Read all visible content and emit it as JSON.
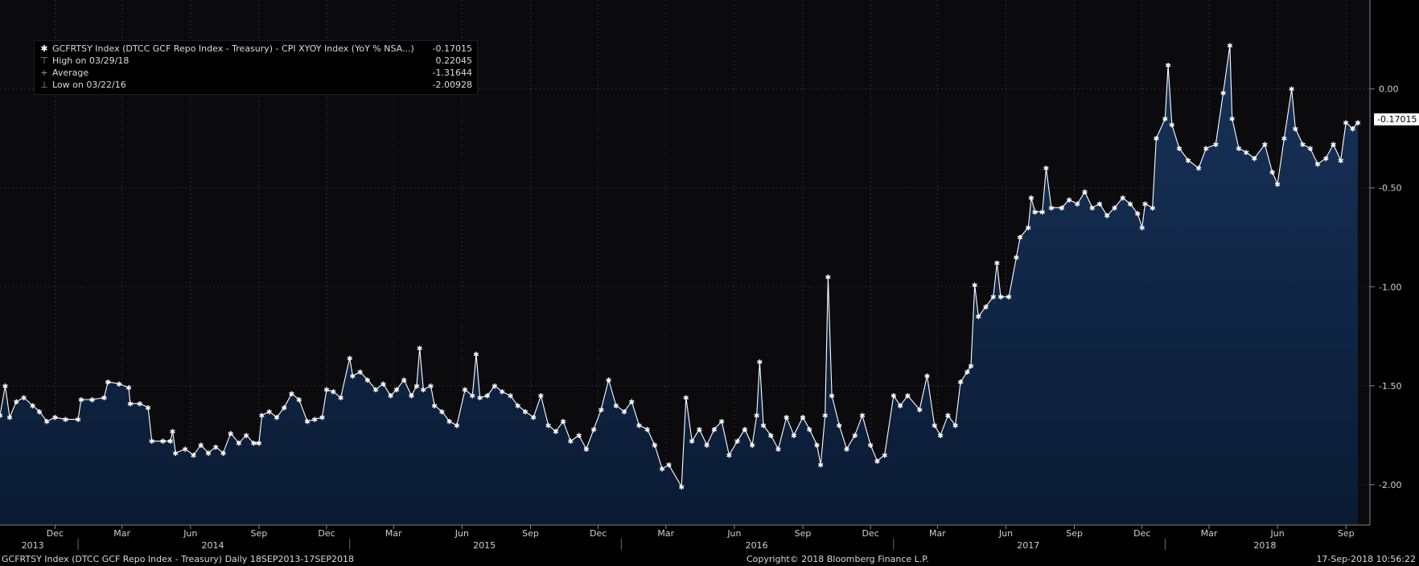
{
  "legend": {
    "series_label": "GCFRTSY Index (DTCC GCF Repo Index - Treasury) - CPI XYOY Index (YoY % NSA...)",
    "series_value": "-0.17015",
    "high_label": "High on 03/29/18",
    "high_value": "0.22045",
    "avg_label": "Average",
    "avg_value": "-1.31644",
    "low_label": "Low on 03/22/16",
    "low_value": "-2.00928",
    "marker_series": "✱",
    "marker_high": "⊤",
    "marker_avg": "+",
    "marker_low": "⊥"
  },
  "last_value_badge": "-0.17015",
  "footer": {
    "left": "GCFRTSY Index (DTCC GCF Repo Index - Treasury)  Daily 18SEP2013-17SEP2018",
    "center": "Copyright© 2018 Bloomberg Finance L.P.",
    "right": "17-Sep-2018 10:56:22"
  },
  "colors": {
    "background": "#000000",
    "plot_background": "#0b0b0e",
    "area_fill_top": "#17335a",
    "area_fill_bottom": "#0a1a33",
    "line": "#ffffff",
    "grid": "#3a3a3a",
    "badge_bg": "#ffffff"
  },
  "chart_data": {
    "type": "area",
    "title": "",
    "xlabel": "",
    "ylabel": "",
    "x_range": [
      "2013-09-18",
      "2018-09-17"
    ],
    "ylim": [
      -2.2,
      0.45
    ],
    "yticks": [
      0.0,
      -0.5,
      -1.0,
      -1.5,
      -2.0
    ],
    "ytick_labels": [
      "0.00",
      "-0.50",
      "-1.00",
      "-1.50",
      "-2.00"
    ],
    "y_axis_side": "right",
    "grid": true,
    "month_ticks": [
      {
        "date": "2013-12-01",
        "label": "Dec"
      },
      {
        "date": "2014-03-01",
        "label": "Mar"
      },
      {
        "date": "2014-06-01",
        "label": "Jun"
      },
      {
        "date": "2014-09-01",
        "label": "Sep"
      },
      {
        "date": "2014-12-01",
        "label": "Dec"
      },
      {
        "date": "2015-03-01",
        "label": "Mar"
      },
      {
        "date": "2015-06-01",
        "label": "Jun"
      },
      {
        "date": "2015-09-01",
        "label": "Sep"
      },
      {
        "date": "2015-12-01",
        "label": "Dec"
      },
      {
        "date": "2016-03-01",
        "label": "Mar"
      },
      {
        "date": "2016-06-01",
        "label": "Jun"
      },
      {
        "date": "2016-09-01",
        "label": "Sep"
      },
      {
        "date": "2016-12-01",
        "label": "Dec"
      },
      {
        "date": "2017-03-01",
        "label": "Mar"
      },
      {
        "date": "2017-06-01",
        "label": "Jun"
      },
      {
        "date": "2017-09-01",
        "label": "Sep"
      },
      {
        "date": "2017-12-01",
        "label": "Dec"
      },
      {
        "date": "2018-03-01",
        "label": "Mar"
      },
      {
        "date": "2018-06-01",
        "label": "Jun"
      },
      {
        "date": "2018-09-01",
        "label": "Sep"
      }
    ],
    "year_ticks": [
      {
        "date": "2013-11-01",
        "label": "2013"
      },
      {
        "date": "2014-07-01",
        "label": "2014"
      },
      {
        "date": "2015-07-01",
        "label": "2015"
      },
      {
        "date": "2016-07-01",
        "label": "2016"
      },
      {
        "date": "2017-07-01",
        "label": "2017"
      },
      {
        "date": "2018-05-15",
        "label": "2018"
      }
    ],
    "year_separators": [
      "2014-01-01",
      "2015-01-01",
      "2016-01-01",
      "2017-01-01",
      "2018-01-01"
    ],
    "series": [
      {
        "name": "GCFRTSY Index (DTCC GCF Repo Index - Treasury) - CPI XYOY Index (YoY % NSA...)",
        "points": [
          [
            "2013-09-18",
            -1.65
          ],
          [
            "2013-09-25",
            -1.5
          ],
          [
            "2013-10-01",
            -1.66
          ],
          [
            "2013-10-10",
            -1.58
          ],
          [
            "2013-10-20",
            -1.56
          ],
          [
            "2013-11-01",
            -1.6
          ],
          [
            "2013-11-10",
            -1.63
          ],
          [
            "2013-11-20",
            -1.68
          ],
          [
            "2013-12-01",
            -1.66
          ],
          [
            "2013-12-15",
            -1.67
          ],
          [
            "2014-01-01",
            -1.67
          ],
          [
            "2014-01-05",
            -1.57
          ],
          [
            "2014-01-20",
            -1.57
          ],
          [
            "2014-02-05",
            -1.56
          ],
          [
            "2014-02-10",
            -1.48
          ],
          [
            "2014-02-25",
            -1.49
          ],
          [
            "2014-03-10",
            -1.51
          ],
          [
            "2014-03-12",
            -1.59
          ],
          [
            "2014-03-25",
            -1.59
          ],
          [
            "2014-04-05",
            -1.61
          ],
          [
            "2014-04-10",
            -1.78
          ],
          [
            "2014-04-25",
            -1.78
          ],
          [
            "2014-05-05",
            -1.78
          ],
          [
            "2014-05-08",
            -1.73
          ],
          [
            "2014-05-12",
            -1.84
          ],
          [
            "2014-05-25",
            -1.82
          ],
          [
            "2014-06-05",
            -1.85
          ],
          [
            "2014-06-15",
            -1.8
          ],
          [
            "2014-06-25",
            -1.84
          ],
          [
            "2014-07-05",
            -1.81
          ],
          [
            "2014-07-15",
            -1.84
          ],
          [
            "2014-07-25",
            -1.74
          ],
          [
            "2014-08-05",
            -1.79
          ],
          [
            "2014-08-15",
            -1.75
          ],
          [
            "2014-08-25",
            -1.79
          ],
          [
            "2014-09-01",
            -1.79
          ],
          [
            "2014-09-05",
            -1.65
          ],
          [
            "2014-09-15",
            -1.63
          ],
          [
            "2014-09-25",
            -1.66
          ],
          [
            "2014-10-05",
            -1.61
          ],
          [
            "2014-10-15",
            -1.54
          ],
          [
            "2014-10-25",
            -1.57
          ],
          [
            "2014-11-05",
            -1.68
          ],
          [
            "2014-11-15",
            -1.67
          ],
          [
            "2014-11-25",
            -1.66
          ],
          [
            "2014-12-01",
            -1.52
          ],
          [
            "2014-12-10",
            -1.53
          ],
          [
            "2014-12-20",
            -1.56
          ],
          [
            "2015-01-01",
            -1.36
          ],
          [
            "2015-01-05",
            -1.45
          ],
          [
            "2015-01-15",
            -1.43
          ],
          [
            "2015-01-25",
            -1.47
          ],
          [
            "2015-02-05",
            -1.52
          ],
          [
            "2015-02-15",
            -1.49
          ],
          [
            "2015-02-25",
            -1.55
          ],
          [
            "2015-03-05",
            -1.52
          ],
          [
            "2015-03-15",
            -1.47
          ],
          [
            "2015-03-25",
            -1.55
          ],
          [
            "2015-04-01",
            -1.5
          ],
          [
            "2015-04-05",
            -1.31
          ],
          [
            "2015-04-10",
            -1.52
          ],
          [
            "2015-04-20",
            -1.5
          ],
          [
            "2015-04-25",
            -1.6
          ],
          [
            "2015-05-05",
            -1.63
          ],
          [
            "2015-05-15",
            -1.68
          ],
          [
            "2015-05-25",
            -1.7
          ],
          [
            "2015-06-05",
            -1.52
          ],
          [
            "2015-06-15",
            -1.55
          ],
          [
            "2015-06-20",
            -1.34
          ],
          [
            "2015-06-25",
            -1.56
          ],
          [
            "2015-07-05",
            -1.55
          ],
          [
            "2015-07-15",
            -1.5
          ],
          [
            "2015-07-25",
            -1.53
          ],
          [
            "2015-08-05",
            -1.55
          ],
          [
            "2015-08-15",
            -1.6
          ],
          [
            "2015-08-25",
            -1.63
          ],
          [
            "2015-09-05",
            -1.66
          ],
          [
            "2015-09-15",
            -1.55
          ],
          [
            "2015-09-25",
            -1.7
          ],
          [
            "2015-10-05",
            -1.73
          ],
          [
            "2015-10-15",
            -1.68
          ],
          [
            "2015-10-25",
            -1.78
          ],
          [
            "2015-11-05",
            -1.75
          ],
          [
            "2015-11-15",
            -1.82
          ],
          [
            "2015-11-25",
            -1.72
          ],
          [
            "2015-12-05",
            -1.62
          ],
          [
            "2015-12-15",
            -1.47
          ],
          [
            "2015-12-25",
            -1.6
          ],
          [
            "2016-01-05",
            -1.63
          ],
          [
            "2016-01-15",
            -1.58
          ],
          [
            "2016-01-25",
            -1.7
          ],
          [
            "2016-02-05",
            -1.72
          ],
          [
            "2016-02-15",
            -1.8
          ],
          [
            "2016-02-25",
            -1.92
          ],
          [
            "2016-03-05",
            -1.9
          ],
          [
            "2016-03-22",
            -2.01
          ],
          [
            "2016-03-28",
            -1.56
          ],
          [
            "2016-04-05",
            -1.78
          ],
          [
            "2016-04-15",
            -1.72
          ],
          [
            "2016-04-25",
            -1.8
          ],
          [
            "2016-05-05",
            -1.72
          ],
          [
            "2016-05-15",
            -1.68
          ],
          [
            "2016-05-25",
            -1.85
          ],
          [
            "2016-06-05",
            -1.78
          ],
          [
            "2016-06-15",
            -1.72
          ],
          [
            "2016-06-25",
            -1.8
          ],
          [
            "2016-07-01",
            -1.65
          ],
          [
            "2016-07-05",
            -1.38
          ],
          [
            "2016-07-10",
            -1.7
          ],
          [
            "2016-07-20",
            -1.75
          ],
          [
            "2016-07-30",
            -1.82
          ],
          [
            "2016-08-10",
            -1.66
          ],
          [
            "2016-08-20",
            -1.75
          ],
          [
            "2016-09-01",
            -1.66
          ],
          [
            "2016-09-10",
            -1.72
          ],
          [
            "2016-09-20",
            -1.8
          ],
          [
            "2016-09-25",
            -1.9
          ],
          [
            "2016-10-01",
            -1.65
          ],
          [
            "2016-10-05",
            -0.95
          ],
          [
            "2016-10-10",
            -1.55
          ],
          [
            "2016-10-20",
            -1.7
          ],
          [
            "2016-10-30",
            -1.82
          ],
          [
            "2016-11-10",
            -1.75
          ],
          [
            "2016-11-20",
            -1.65
          ],
          [
            "2016-12-01",
            -1.8
          ],
          [
            "2016-12-10",
            -1.88
          ],
          [
            "2016-12-20",
            -1.85
          ],
          [
            "2017-01-01",
            -1.55
          ],
          [
            "2017-01-10",
            -1.6
          ],
          [
            "2017-01-20",
            -1.55
          ],
          [
            "2017-02-05",
            -1.62
          ],
          [
            "2017-02-15",
            -1.45
          ],
          [
            "2017-02-25",
            -1.7
          ],
          [
            "2017-03-05",
            -1.75
          ],
          [
            "2017-03-15",
            -1.65
          ],
          [
            "2017-03-25",
            -1.7
          ],
          [
            "2017-04-01",
            -1.48
          ],
          [
            "2017-04-10",
            -1.43
          ],
          [
            "2017-04-15",
            -1.4
          ],
          [
            "2017-04-20",
            -0.99
          ],
          [
            "2017-04-25",
            -1.15
          ],
          [
            "2017-05-05",
            -1.1
          ],
          [
            "2017-05-15",
            -1.05
          ],
          [
            "2017-05-20",
            -0.88
          ],
          [
            "2017-05-25",
            -1.05
          ],
          [
            "2017-06-05",
            -1.05
          ],
          [
            "2017-06-15",
            -0.85
          ],
          [
            "2017-06-20",
            -0.75
          ],
          [
            "2017-07-01",
            -0.7
          ],
          [
            "2017-07-05",
            -0.55
          ],
          [
            "2017-07-10",
            -0.62
          ],
          [
            "2017-07-20",
            -0.62
          ],
          [
            "2017-07-25",
            -0.4
          ],
          [
            "2017-08-01",
            -0.6
          ],
          [
            "2017-08-15",
            -0.6
          ],
          [
            "2017-08-25",
            -0.56
          ],
          [
            "2017-09-05",
            -0.58
          ],
          [
            "2017-09-15",
            -0.52
          ],
          [
            "2017-09-25",
            -0.6
          ],
          [
            "2017-10-05",
            -0.58
          ],
          [
            "2017-10-15",
            -0.64
          ],
          [
            "2017-10-25",
            -0.6
          ],
          [
            "2017-11-05",
            -0.55
          ],
          [
            "2017-11-15",
            -0.58
          ],
          [
            "2017-11-25",
            -0.63
          ],
          [
            "2017-12-01",
            -0.7
          ],
          [
            "2017-12-05",
            -0.58
          ],
          [
            "2017-12-15",
            -0.6
          ],
          [
            "2017-12-20",
            -0.25
          ],
          [
            "2018-01-01",
            -0.15
          ],
          [
            "2018-01-05",
            0.12
          ],
          [
            "2018-01-10",
            -0.18
          ],
          [
            "2018-01-20",
            -0.3
          ],
          [
            "2018-02-01",
            -0.36
          ],
          [
            "2018-02-15",
            -0.4
          ],
          [
            "2018-02-25",
            -0.3
          ],
          [
            "2018-03-10",
            -0.28
          ],
          [
            "2018-03-20",
            -0.02
          ],
          [
            "2018-03-29",
            0.22
          ],
          [
            "2018-04-01",
            -0.15
          ],
          [
            "2018-04-10",
            -0.3
          ],
          [
            "2018-04-20",
            -0.32
          ],
          [
            "2018-05-01",
            -0.35
          ],
          [
            "2018-05-15",
            -0.28
          ],
          [
            "2018-05-25",
            -0.42
          ],
          [
            "2018-06-01",
            -0.48
          ],
          [
            "2018-06-10",
            -0.25
          ],
          [
            "2018-06-20",
            0.0
          ],
          [
            "2018-06-25",
            -0.2
          ],
          [
            "2018-07-05",
            -0.28
          ],
          [
            "2018-07-15",
            -0.3
          ],
          [
            "2018-07-25",
            -0.38
          ],
          [
            "2018-08-05",
            -0.35
          ],
          [
            "2018-08-15",
            -0.28
          ],
          [
            "2018-08-25",
            -0.36
          ],
          [
            "2018-09-01",
            -0.17
          ],
          [
            "2018-09-10",
            -0.2
          ],
          [
            "2018-09-17",
            -0.17
          ]
        ]
      }
    ]
  }
}
